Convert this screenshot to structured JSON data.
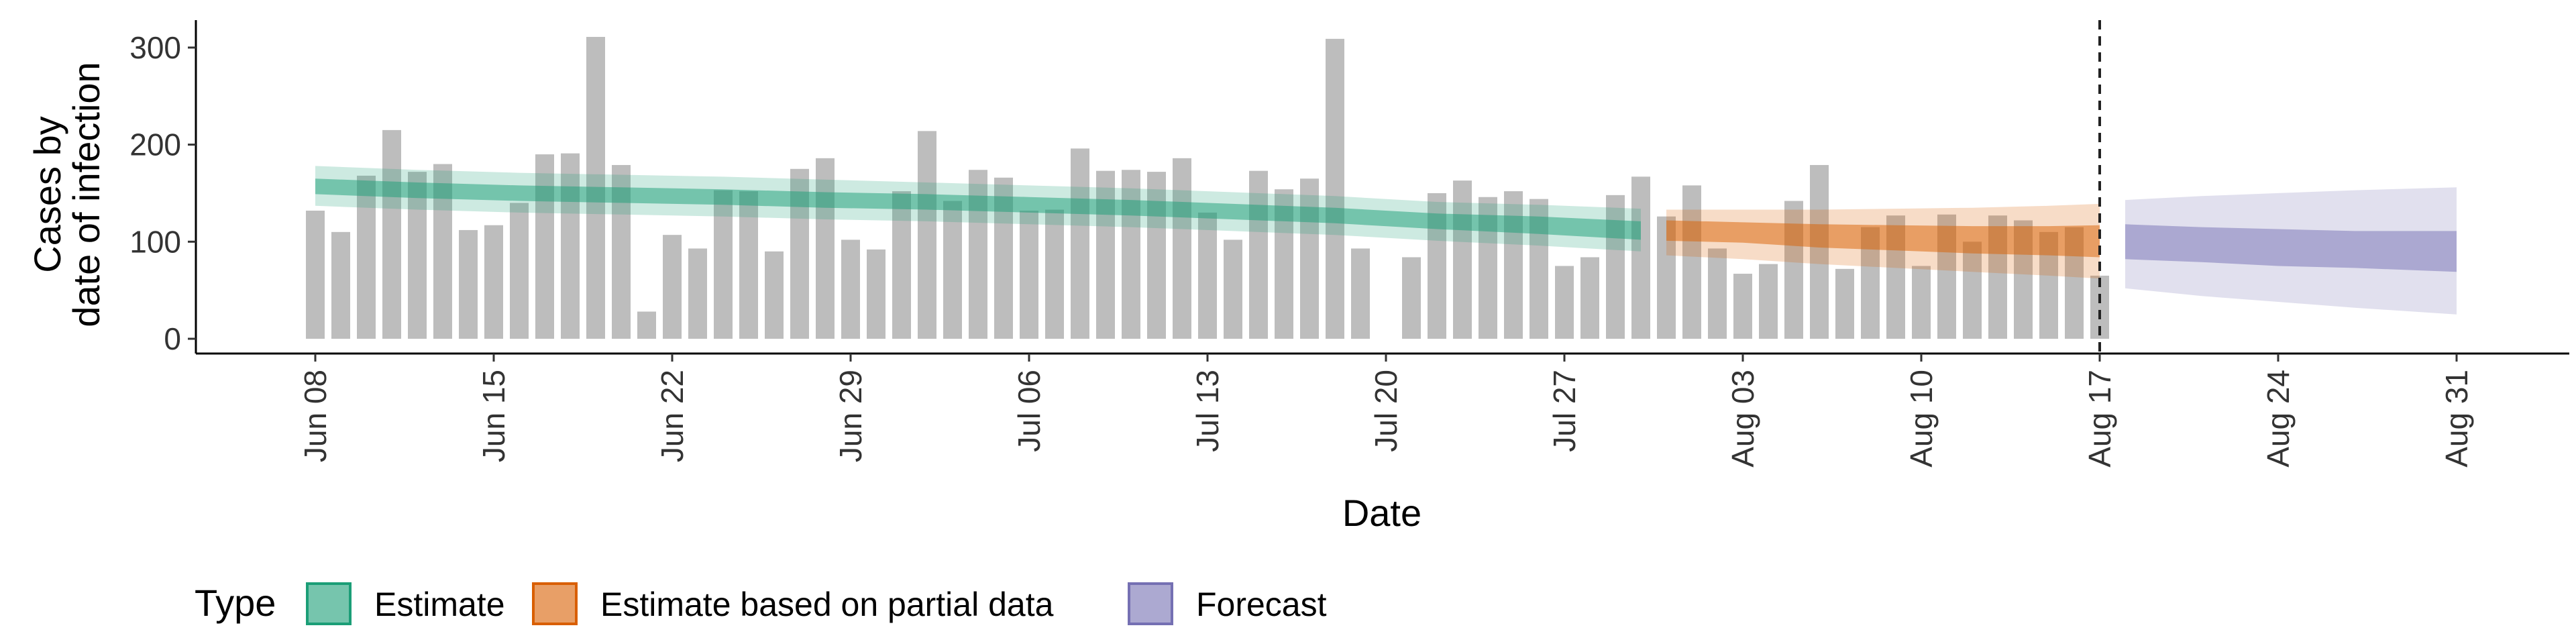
{
  "chart_data": {
    "type": "bar",
    "xlabel": "Date",
    "ylabel": [
      "Cases by",
      "date of infection"
    ],
    "ylim": [
      0,
      330
    ],
    "y_ticks": [
      0,
      100,
      200,
      300
    ],
    "x_ticks": [
      {
        "day": 0,
        "label": "Jun 08"
      },
      {
        "day": 7,
        "label": "Jun 15"
      },
      {
        "day": 14,
        "label": "Jun 22"
      },
      {
        "day": 21,
        "label": "Jun 29"
      },
      {
        "day": 28,
        "label": "Jul 06"
      },
      {
        "day": 35,
        "label": "Jul 13"
      },
      {
        "day": 42,
        "label": "Jul 20"
      },
      {
        "day": 49,
        "label": "Jul 27"
      },
      {
        "day": 56,
        "label": "Aug 03"
      },
      {
        "day": 63,
        "label": "Aug 10"
      },
      {
        "day": 70,
        "label": "Aug 17"
      },
      {
        "day": 77,
        "label": "Aug 24"
      },
      {
        "day": 84,
        "label": "Aug 31"
      }
    ],
    "bars": {
      "start_date": "Jun 08",
      "values": [
        132,
        110,
        168,
        215,
        172,
        180,
        112,
        117,
        140,
        190,
        191,
        311,
        179,
        28,
        107,
        93,
        153,
        152,
        90,
        175,
        186,
        102,
        92,
        152,
        214,
        142,
        174,
        166,
        132,
        133,
        196,
        173,
        174,
        172,
        186,
        130,
        102,
        173,
        154,
        165,
        309,
        93,
        null,
        84,
        150,
        163,
        146,
        152,
        144,
        75,
        84,
        148,
        167,
        126,
        158,
        93,
        67,
        77,
        142,
        179,
        72,
        115,
        127,
        75,
        128,
        100,
        127,
        122,
        110,
        115,
        65
      ]
    },
    "vline_day": 70,
    "series": [
      {
        "name": "Estimate",
        "color": "#1b9e77",
        "days": [
          0,
          4,
          8,
          12,
          16,
          20,
          24,
          28,
          32,
          36,
          40,
          44,
          48,
          52
        ],
        "median": [
          157,
          153,
          150,
          148,
          146,
          143,
          141,
          138,
          135,
          131,
          127,
          121,
          117,
          112
        ],
        "inner": [
          [
            149,
            165
          ],
          [
            145,
            161
          ],
          [
            142,
            158
          ],
          [
            140,
            156
          ],
          [
            138,
            154
          ],
          [
            135,
            151
          ],
          [
            133,
            149
          ],
          [
            130,
            146
          ],
          [
            127,
            143
          ],
          [
            123,
            139
          ],
          [
            119,
            135
          ],
          [
            113,
            129
          ],
          [
            108,
            126
          ],
          [
            102,
            121
          ]
        ],
        "outer": [
          [
            137,
            178
          ],
          [
            133,
            174
          ],
          [
            130,
            171
          ],
          [
            128,
            169
          ],
          [
            126,
            167
          ],
          [
            123,
            164
          ],
          [
            121,
            161
          ],
          [
            118,
            158
          ],
          [
            115,
            155
          ],
          [
            111,
            151
          ],
          [
            107,
            147
          ],
          [
            101,
            141
          ],
          [
            96,
            138
          ],
          [
            90,
            134
          ]
        ]
      },
      {
        "name": "Estimate based on partial data",
        "color": "#d95f02",
        "days": [
          53,
          56,
          59,
          62,
          65,
          68,
          70
        ],
        "median": [
          111,
          109,
          106,
          104,
          102,
          100,
          99
        ],
        "inner": [
          [
            101,
            122
          ],
          [
            99,
            120
          ],
          [
            94,
            118
          ],
          [
            91,
            117
          ],
          [
            88,
            116
          ],
          [
            86,
            116
          ],
          [
            84,
            117
          ]
        ],
        "outer": [
          [
            86,
            133
          ],
          [
            82,
            133
          ],
          [
            77,
            133
          ],
          [
            73,
            134
          ],
          [
            69,
            135
          ],
          [
            65,
            137
          ],
          [
            62,
            139
          ]
        ]
      },
      {
        "name": "Forecast",
        "color": "#7570b3",
        "days": [
          71,
          74,
          77,
          80,
          84
        ],
        "median": [
          98,
          95,
          92,
          90,
          88
        ],
        "inner": [
          [
            82,
            118
          ],
          [
            79,
            115
          ],
          [
            75,
            113
          ],
          [
            73,
            111
          ],
          [
            69,
            111
          ]
        ],
        "outer": [
          [
            52,
            143
          ],
          [
            44,
            147
          ],
          [
            38,
            150
          ],
          [
            32,
            153
          ],
          [
            25,
            156
          ]
        ]
      }
    ],
    "legend": {
      "title": "Type",
      "position": "bottom-left",
      "items": [
        "Estimate",
        "Estimate based on partial data",
        "Forecast"
      ]
    }
  }
}
